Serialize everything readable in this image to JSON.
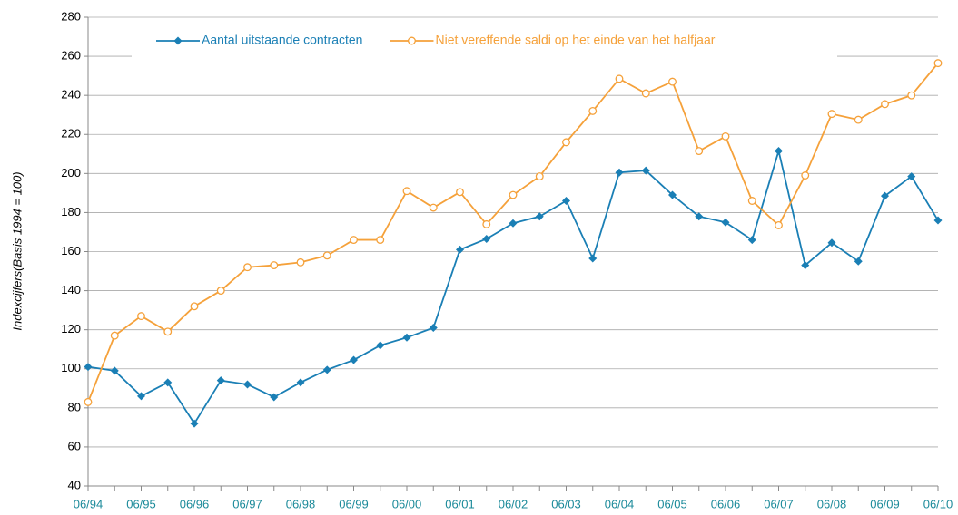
{
  "chart_data": {
    "type": "line",
    "ylabel": "Indexcijfers(Basis 1994 = 100)",
    "categories": [
      "06/94",
      null,
      "06/95",
      null,
      "06/96",
      null,
      "06/97",
      null,
      "06/98",
      null,
      "06/99",
      null,
      "06/00",
      null,
      "06/01",
      null,
      "06/02",
      null,
      "06/03",
      null,
      "06/04",
      null,
      "06/05",
      null,
      "06/06",
      null,
      "06/07",
      null,
      "06/08",
      null,
      "06/09",
      null,
      "06/10"
    ],
    "series": [
      {
        "name": "Aantal uitstaande contracten",
        "color": "#1a7fb5",
        "marker": "diamond",
        "values": [
          101,
          99,
          86,
          93,
          72,
          94,
          92,
          85.5,
          93,
          99.5,
          104.5,
          112,
          116,
          121,
          161,
          166.5,
          174.5,
          178,
          186,
          156.5,
          200.5,
          201.5,
          189,
          178,
          175,
          166,
          211.5,
          153,
          164.5,
          155,
          188.5,
          198.5,
          176
        ]
      },
      {
        "name": "Niet vereffende saldi op het einde van het halfjaar",
        "color": "#f5a13a",
        "marker": "circle",
        "values": [
          83,
          117,
          127,
          119,
          132,
          140,
          152,
          153,
          154.5,
          158,
          166,
          166,
          191,
          182.5,
          190.5,
          174,
          189,
          198.5,
          216,
          232,
          248.5,
          241,
          247,
          211.5,
          219,
          186,
          173.5,
          199,
          230.5,
          227.5,
          235.5,
          240,
          256.5
        ]
      }
    ],
    "ylim": [
      40,
      280
    ],
    "yticks": [
      40,
      60,
      80,
      100,
      120,
      140,
      160,
      180,
      200,
      220,
      240,
      260,
      280
    ],
    "grid": true,
    "legend": "top"
  }
}
